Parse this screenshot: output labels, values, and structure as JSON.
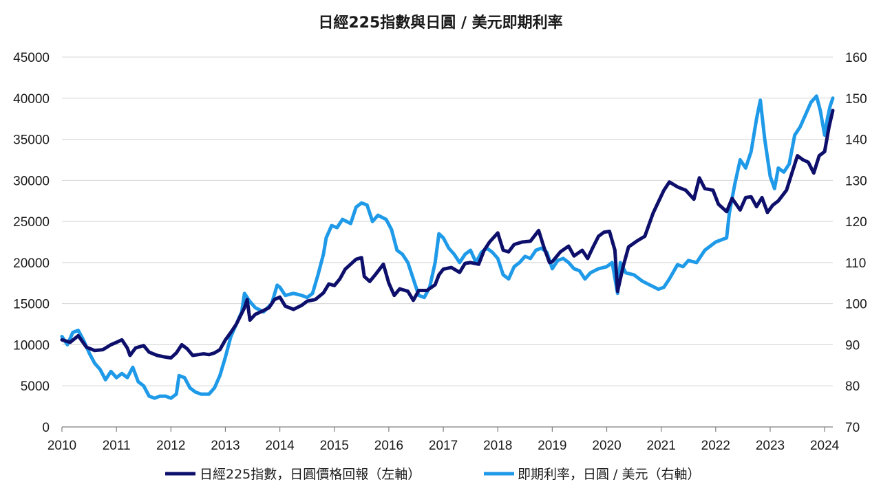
{
  "chart_data": {
    "type": "line",
    "title": "日經225指數與日圓 / 美元即期利率",
    "xlabel": "",
    "ylabel_left": "",
    "ylabel_right": "",
    "x_tick_labels": [
      "2010",
      "2011",
      "2012",
      "2013",
      "2014",
      "2015",
      "2016",
      "2017",
      "2018",
      "2019",
      "2020",
      "2021",
      "2022",
      "2023",
      "2024"
    ],
    "xlim": [
      2010.0,
      2024.15
    ],
    "y_left": {
      "lim": [
        0,
        45000
      ],
      "ticks": [
        "0",
        "5000",
        "10000",
        "15000",
        "20000",
        "25000",
        "30000",
        "35000",
        "40000",
        "45000"
      ]
    },
    "y_right": {
      "lim": [
        70,
        160
      ],
      "ticks": [
        "70",
        "80",
        "90",
        "100",
        "110",
        "120",
        "130",
        "140",
        "150",
        "160"
      ]
    },
    "grid": true,
    "legend_position": "bottom",
    "series": [
      {
        "name": "日經225指數，日圓價格回報（左軸）",
        "axis": "left",
        "color": "#0d0f6b",
        "points": [
          [
            2010.0,
            10600
          ],
          [
            2010.15,
            10300
          ],
          [
            2010.3,
            11100
          ],
          [
            2010.45,
            9700
          ],
          [
            2010.6,
            9300
          ],
          [
            2010.75,
            9400
          ],
          [
            2010.9,
            10000
          ],
          [
            2011.0,
            10300
          ],
          [
            2011.1,
            10600
          ],
          [
            2011.2,
            9600
          ],
          [
            2011.25,
            8700
          ],
          [
            2011.35,
            9600
          ],
          [
            2011.5,
            9900
          ],
          [
            2011.6,
            9100
          ],
          [
            2011.75,
            8700
          ],
          [
            2011.9,
            8500
          ],
          [
            2012.0,
            8400
          ],
          [
            2012.1,
            9000
          ],
          [
            2012.2,
            10000
          ],
          [
            2012.3,
            9500
          ],
          [
            2012.4,
            8700
          ],
          [
            2012.5,
            8800
          ],
          [
            2012.6,
            8900
          ],
          [
            2012.7,
            8800
          ],
          [
            2012.8,
            9000
          ],
          [
            2012.9,
            9400
          ],
          [
            2013.0,
            10600
          ],
          [
            2013.1,
            11500
          ],
          [
            2013.2,
            12500
          ],
          [
            2013.35,
            14500
          ],
          [
            2013.4,
            15500
          ],
          [
            2013.45,
            13000
          ],
          [
            2013.55,
            13700
          ],
          [
            2013.65,
            14000
          ],
          [
            2013.8,
            14500
          ],
          [
            2013.9,
            15500
          ],
          [
            2014.0,
            15800
          ],
          [
            2014.1,
            14700
          ],
          [
            2014.25,
            14300
          ],
          [
            2014.4,
            14800
          ],
          [
            2014.5,
            15300
          ],
          [
            2014.65,
            15500
          ],
          [
            2014.8,
            16300
          ],
          [
            2014.9,
            17400
          ],
          [
            2015.0,
            17200
          ],
          [
            2015.1,
            18000
          ],
          [
            2015.2,
            19200
          ],
          [
            2015.3,
            19800
          ],
          [
            2015.4,
            20400
          ],
          [
            2015.5,
            20600
          ],
          [
            2015.55,
            18300
          ],
          [
            2015.65,
            17700
          ],
          [
            2015.75,
            18500
          ],
          [
            2015.9,
            19800
          ],
          [
            2016.0,
            17500
          ],
          [
            2016.1,
            16000
          ],
          [
            2016.2,
            16800
          ],
          [
            2016.35,
            16500
          ],
          [
            2016.45,
            15400
          ],
          [
            2016.55,
            16600
          ],
          [
            2016.7,
            16600
          ],
          [
            2016.85,
            17300
          ],
          [
            2016.92,
            18500
          ],
          [
            2017.0,
            19200
          ],
          [
            2017.15,
            19400
          ],
          [
            2017.3,
            18800
          ],
          [
            2017.4,
            19900
          ],
          [
            2017.5,
            20000
          ],
          [
            2017.65,
            19800
          ],
          [
            2017.75,
            21500
          ],
          [
            2017.85,
            22500
          ],
          [
            2018.0,
            23600
          ],
          [
            2018.1,
            21500
          ],
          [
            2018.2,
            21300
          ],
          [
            2018.3,
            22200
          ],
          [
            2018.45,
            22500
          ],
          [
            2018.6,
            22600
          ],
          [
            2018.75,
            23900
          ],
          [
            2018.85,
            21800
          ],
          [
            2018.95,
            20000
          ],
          [
            2019.0,
            20100
          ],
          [
            2019.15,
            21300
          ],
          [
            2019.3,
            22000
          ],
          [
            2019.4,
            20800
          ],
          [
            2019.55,
            21500
          ],
          [
            2019.65,
            20500
          ],
          [
            2019.75,
            21900
          ],
          [
            2019.85,
            23200
          ],
          [
            2019.95,
            23700
          ],
          [
            2020.05,
            23800
          ],
          [
            2020.15,
            21500
          ],
          [
            2020.2,
            16500
          ],
          [
            2020.3,
            19500
          ],
          [
            2020.4,
            21900
          ],
          [
            2020.55,
            22600
          ],
          [
            2020.7,
            23200
          ],
          [
            2020.85,
            26000
          ],
          [
            2020.95,
            27400
          ],
          [
            2021.05,
            28800
          ],
          [
            2021.15,
            29800
          ],
          [
            2021.3,
            29200
          ],
          [
            2021.45,
            28800
          ],
          [
            2021.6,
            27700
          ],
          [
            2021.7,
            30300
          ],
          [
            2021.8,
            29000
          ],
          [
            2021.95,
            28800
          ],
          [
            2022.05,
            27100
          ],
          [
            2022.2,
            26200
          ],
          [
            2022.3,
            27800
          ],
          [
            2022.45,
            26400
          ],
          [
            2022.55,
            27900
          ],
          [
            2022.65,
            28000
          ],
          [
            2022.75,
            26800
          ],
          [
            2022.85,
            27900
          ],
          [
            2022.95,
            26100
          ],
          [
            2023.05,
            27000
          ],
          [
            2023.15,
            27500
          ],
          [
            2023.3,
            28800
          ],
          [
            2023.4,
            30900
          ],
          [
            2023.5,
            33000
          ],
          [
            2023.6,
            32500
          ],
          [
            2023.7,
            32200
          ],
          [
            2023.8,
            30900
          ],
          [
            2023.9,
            33000
          ],
          [
            2024.0,
            33500
          ],
          [
            2024.08,
            36500
          ],
          [
            2024.15,
            38500
          ]
        ]
      },
      {
        "name": "即期利率，日圓 / 美元（右軸）",
        "axis": "right",
        "color": "#1f9ae8",
        "points": [
          [
            2010.0,
            92
          ],
          [
            2010.1,
            90
          ],
          [
            2010.2,
            93
          ],
          [
            2010.3,
            93.5
          ],
          [
            2010.4,
            91
          ],
          [
            2010.5,
            88
          ],
          [
            2010.6,
            85.5
          ],
          [
            2010.7,
            84
          ],
          [
            2010.8,
            81.5
          ],
          [
            2010.9,
            83.5
          ],
          [
            2011.0,
            82
          ],
          [
            2011.1,
            83
          ],
          [
            2011.2,
            82
          ],
          [
            2011.3,
            84.5
          ],
          [
            2011.4,
            81
          ],
          [
            2011.5,
            80
          ],
          [
            2011.6,
            77.5
          ],
          [
            2011.7,
            77
          ],
          [
            2011.8,
            77.5
          ],
          [
            2011.9,
            77.5
          ],
          [
            2012.0,
            77
          ],
          [
            2012.1,
            78
          ],
          [
            2012.15,
            82.5
          ],
          [
            2012.25,
            82
          ],
          [
            2012.35,
            79.5
          ],
          [
            2012.45,
            78.5
          ],
          [
            2012.55,
            78
          ],
          [
            2012.7,
            78
          ],
          [
            2012.8,
            79.5
          ],
          [
            2012.9,
            82.5
          ],
          [
            2013.0,
            87
          ],
          [
            2013.1,
            92
          ],
          [
            2013.2,
            95
          ],
          [
            2013.3,
            98
          ],
          [
            2013.35,
            102.5
          ],
          [
            2013.45,
            100.5
          ],
          [
            2013.55,
            99
          ],
          [
            2013.7,
            98
          ],
          [
            2013.85,
            100
          ],
          [
            2013.95,
            104.5
          ],
          [
            2014.0,
            104
          ],
          [
            2014.1,
            102
          ],
          [
            2014.25,
            102.5
          ],
          [
            2014.4,
            102
          ],
          [
            2014.5,
            101.5
          ],
          [
            2014.6,
            102.5
          ],
          [
            2014.7,
            107
          ],
          [
            2014.8,
            112
          ],
          [
            2014.85,
            116
          ],
          [
            2014.95,
            119
          ],
          [
            2015.05,
            118.5
          ],
          [
            2015.15,
            120.5
          ],
          [
            2015.3,
            119.5
          ],
          [
            2015.4,
            123.5
          ],
          [
            2015.5,
            124.5
          ],
          [
            2015.6,
            124
          ],
          [
            2015.7,
            120
          ],
          [
            2015.8,
            121.5
          ],
          [
            2015.95,
            120.5
          ],
          [
            2016.05,
            118
          ],
          [
            2016.15,
            113
          ],
          [
            2016.25,
            112
          ],
          [
            2016.35,
            110
          ],
          [
            2016.45,
            106
          ],
          [
            2016.55,
            102
          ],
          [
            2016.65,
            101.5
          ],
          [
            2016.75,
            104
          ],
          [
            2016.85,
            110
          ],
          [
            2016.92,
            117
          ],
          [
            2017.0,
            116
          ],
          [
            2017.1,
            113.5
          ],
          [
            2017.2,
            112
          ],
          [
            2017.3,
            110
          ],
          [
            2017.4,
            112
          ],
          [
            2017.5,
            113
          ],
          [
            2017.6,
            110
          ],
          [
            2017.7,
            112.5
          ],
          [
            2017.8,
            113.5
          ],
          [
            2017.9,
            112.5
          ],
          [
            2018.0,
            111
          ],
          [
            2018.1,
            107
          ],
          [
            2018.2,
            106
          ],
          [
            2018.3,
            109
          ],
          [
            2018.4,
            110
          ],
          [
            2018.5,
            111.5
          ],
          [
            2018.6,
            111
          ],
          [
            2018.7,
            113
          ],
          [
            2018.8,
            113.5
          ],
          [
            2018.9,
            112.5
          ],
          [
            2019.0,
            108.5
          ],
          [
            2019.1,
            110.5
          ],
          [
            2019.2,
            111
          ],
          [
            2019.3,
            110
          ],
          [
            2019.4,
            108.5
          ],
          [
            2019.5,
            108
          ],
          [
            2019.6,
            106
          ],
          [
            2019.7,
            107.5
          ],
          [
            2019.85,
            108.5
          ],
          [
            2020.0,
            109
          ],
          [
            2020.1,
            110
          ],
          [
            2020.2,
            102.5
          ],
          [
            2020.25,
            110
          ],
          [
            2020.35,
            107.5
          ],
          [
            2020.5,
            107
          ],
          [
            2020.65,
            105.5
          ],
          [
            2020.8,
            104.5
          ],
          [
            2020.95,
            103.5
          ],
          [
            2021.05,
            104
          ],
          [
            2021.15,
            106
          ],
          [
            2021.3,
            109.5
          ],
          [
            2021.4,
            109
          ],
          [
            2021.5,
            110.5
          ],
          [
            2021.65,
            110
          ],
          [
            2021.8,
            113
          ],
          [
            2021.9,
            114
          ],
          [
            2022.0,
            115
          ],
          [
            2022.1,
            115.5
          ],
          [
            2022.2,
            116
          ],
          [
            2022.25,
            122
          ],
          [
            2022.35,
            129
          ],
          [
            2022.45,
            135
          ],
          [
            2022.55,
            133
          ],
          [
            2022.65,
            137
          ],
          [
            2022.75,
            145
          ],
          [
            2022.82,
            149.5
          ],
          [
            2022.9,
            140
          ],
          [
            2023.0,
            131
          ],
          [
            2023.08,
            128
          ],
          [
            2023.15,
            133
          ],
          [
            2023.25,
            132
          ],
          [
            2023.35,
            134
          ],
          [
            2023.45,
            141
          ],
          [
            2023.55,
            143
          ],
          [
            2023.65,
            146
          ],
          [
            2023.75,
            149
          ],
          [
            2023.85,
            150.5
          ],
          [
            2023.92,
            147
          ],
          [
            2024.0,
            141
          ],
          [
            2024.05,
            145
          ],
          [
            2024.1,
            148
          ],
          [
            2024.15,
            150
          ]
        ]
      }
    ]
  }
}
